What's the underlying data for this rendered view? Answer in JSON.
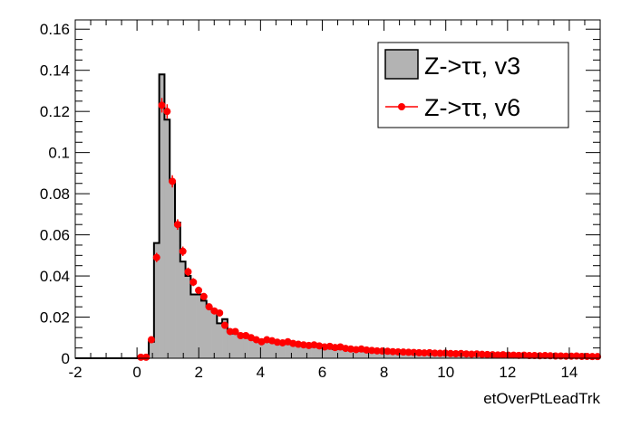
{
  "chart_data": {
    "type": "bar",
    "title": "",
    "xlabel": "etOverPtLeadTrk",
    "ylabel": "",
    "xlim": [
      -2,
      15
    ],
    "ylim": [
      0,
      0.1645
    ],
    "bins": {
      "low": -2,
      "high": 15,
      "count": 100
    },
    "x_ticks": [
      "-2",
      "0",
      "2",
      "4",
      "6",
      "8",
      "10",
      "12",
      "14"
    ],
    "y_ticks": [
      "0",
      "0.02",
      "0.04",
      "0.06",
      "0.08",
      "0.1",
      "0.12",
      "0.14",
      "0.16"
    ],
    "grid": false,
    "legend_position": "top-right",
    "series": [
      {
        "name": "Z->ττ, v3",
        "style": "filled-histogram",
        "fill_color": "#b3b3b3",
        "line_color": "#000000",
        "values": [
          0,
          0,
          0,
          0,
          0,
          0,
          0,
          0,
          0,
          0,
          0,
          0,
          0,
          0,
          0.008,
          0.056,
          0.138,
          0.116,
          0.086,
          0.066,
          0.047,
          0.04,
          0.031,
          0.031,
          0.028,
          0.025,
          0.023,
          0.017,
          0.019,
          0.013,
          0.012,
          0.011,
          0.011,
          0.01,
          0.009,
          0.008,
          0.0085,
          0.008,
          0.0075,
          0.0072,
          0.007,
          0.0068,
          0.0065,
          0.006,
          0.0058,
          0.0055,
          0.0055,
          0.005,
          0.0048,
          0.0045,
          0.0048,
          0.0045,
          0.004,
          0.0038,
          0.0035,
          0.0034,
          0.0032,
          0.003,
          0.003,
          0.0028,
          0.0027,
          0.0026,
          0.0025,
          0.0025,
          0.0024,
          0.0023,
          0.0023,
          0.0022,
          0.0021,
          0.0021,
          0.002,
          0.002,
          0.0019,
          0.0018,
          0.0018,
          0.0017,
          0.0016,
          0.0016,
          0.0015,
          0.0015,
          0.0014,
          0.0014,
          0.0013,
          0.0013,
          0.0012,
          0.0012,
          0.0012,
          0.0011,
          0.0011,
          0.0011,
          0.001,
          0.001,
          0.001,
          0.0009,
          0.0009,
          0.0009,
          0.0008,
          0.0008,
          0.0008,
          0.0007
        ]
      },
      {
        "name": "Z->ττ, v6",
        "style": "markers",
        "color": "#ff0000",
        "values": [
          0,
          0,
          0,
          0,
          0,
          0,
          0,
          0,
          0,
          0,
          0,
          0,
          0.0005,
          0.0005,
          0.009,
          0.049,
          0.123,
          0.12,
          0.086,
          0.065,
          0.052,
          0.042,
          0.037,
          0.033,
          0.03,
          0.025,
          0.023,
          0.022,
          0.016,
          0.013,
          0.013,
          0.011,
          0.011,
          0.01,
          0.009,
          0.008,
          0.009,
          0.0085,
          0.0078,
          0.0075,
          0.008,
          0.0072,
          0.0068,
          0.0065,
          0.0062,
          0.0065,
          0.006,
          0.0055,
          0.0058,
          0.0052,
          0.0055,
          0.0048,
          0.0045,
          0.0042,
          0.0045,
          0.004,
          0.0038,
          0.0036,
          0.0035,
          0.0034,
          0.0032,
          0.0031,
          0.003,
          0.0029,
          0.0028,
          0.0027,
          0.0026,
          0.0027,
          0.0025,
          0.0024,
          0.0025,
          0.0023,
          0.0022,
          0.0023,
          0.0021,
          0.002,
          0.0021,
          0.0019,
          0.0018,
          0.0017,
          0.0016,
          0.0017,
          0.0015,
          0.0015,
          0.0014,
          0.0015,
          0.0013,
          0.0013,
          0.0012,
          0.0013,
          0.0012,
          0.0011,
          0.0011,
          0.001,
          0.001,
          0.0011,
          0.0009,
          0.0009,
          0.0008,
          0.0008
        ]
      }
    ]
  }
}
